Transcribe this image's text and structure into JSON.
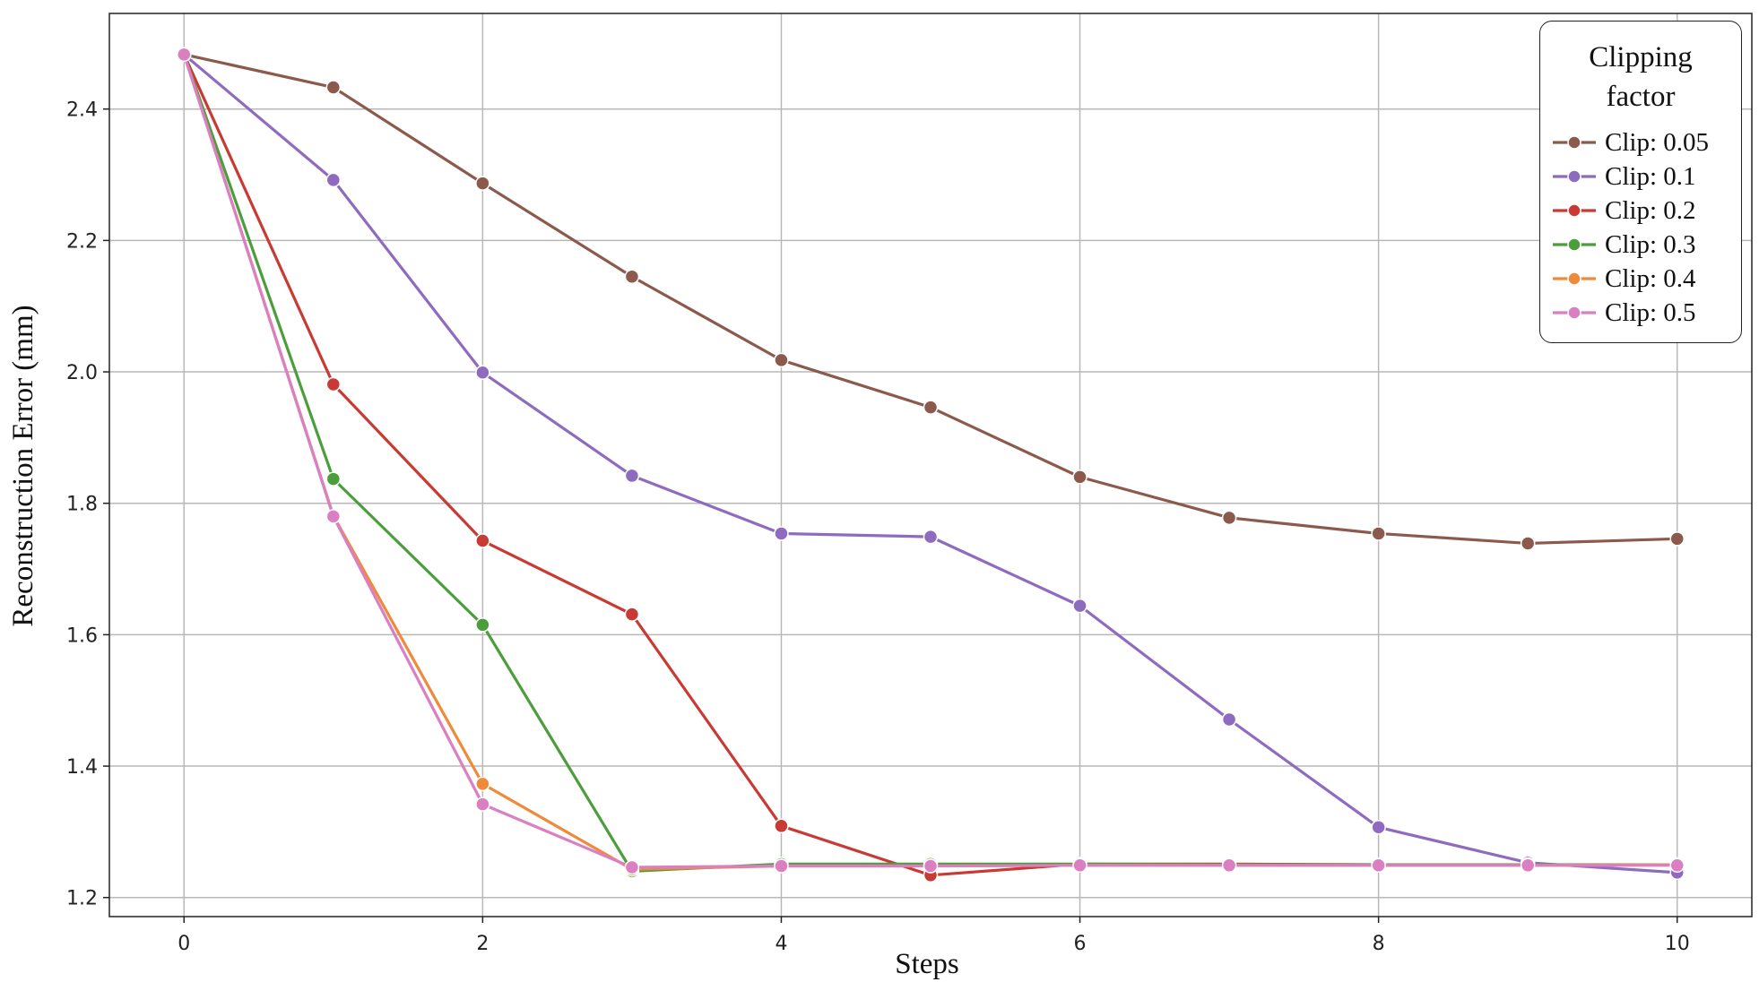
{
  "chart_data": {
    "type": "line",
    "x_label": "Steps",
    "y_label": "Reconstruction Error (mm)",
    "x": [
      0,
      1,
      2,
      3,
      4,
      5,
      6,
      7,
      8,
      9,
      10
    ],
    "xlim": [
      -0.5,
      10.5
    ],
    "xticks": [
      0,
      2,
      4,
      6,
      8,
      10
    ],
    "ylim": [
      1.171,
      2.5455
    ],
    "yticks": [
      1.2,
      1.4,
      1.6,
      1.8,
      {
        "value": 2.0,
        "label": "2.0"
      },
      2.2,
      2.4
    ],
    "grid": true,
    "legend_title": "Clipping factor",
    "legend_position": "upper right",
    "series": [
      {
        "name": "Clip: 0.05",
        "color": "#8b5a4c",
        "values": [
          2.483,
          2.433,
          2.287,
          2.145,
          2.018,
          1.946,
          1.84,
          1.778,
          1.754,
          1.739,
          1.746
        ]
      },
      {
        "name": "Clip: 0.1",
        "color": "#8f6bbf",
        "values": [
          2.483,
          2.292,
          1.999,
          1.842,
          1.754,
          1.749,
          1.644,
          1.471,
          1.307,
          1.253,
          1.238
        ]
      },
      {
        "name": "Clip: 0.2",
        "color": "#c83a33",
        "values": [
          2.483,
          1.981,
          1.743,
          1.631,
          1.309,
          1.234,
          1.251,
          1.251,
          1.25,
          1.25,
          1.25
        ]
      },
      {
        "name": "Clip: 0.3",
        "color": "#4c9e3d",
        "values": [
          2.483,
          1.837,
          1.615,
          1.24,
          1.251,
          1.251,
          1.251,
          1.25,
          1.25,
          1.25,
          1.25
        ]
      },
      {
        "name": "Clip: 0.4",
        "color": "#ef8a3a",
        "values": [
          2.483,
          1.781,
          1.373,
          1.243,
          1.248,
          1.248,
          1.249,
          1.249,
          1.249,
          1.249,
          1.25
        ]
      },
      {
        "name": "Clip: 0.5",
        "color": "#d97fc2",
        "values": [
          2.483,
          1.78,
          1.342,
          1.246,
          1.248,
          1.248,
          1.249,
          1.249,
          1.249,
          1.249,
          1.249
        ]
      }
    ]
  }
}
